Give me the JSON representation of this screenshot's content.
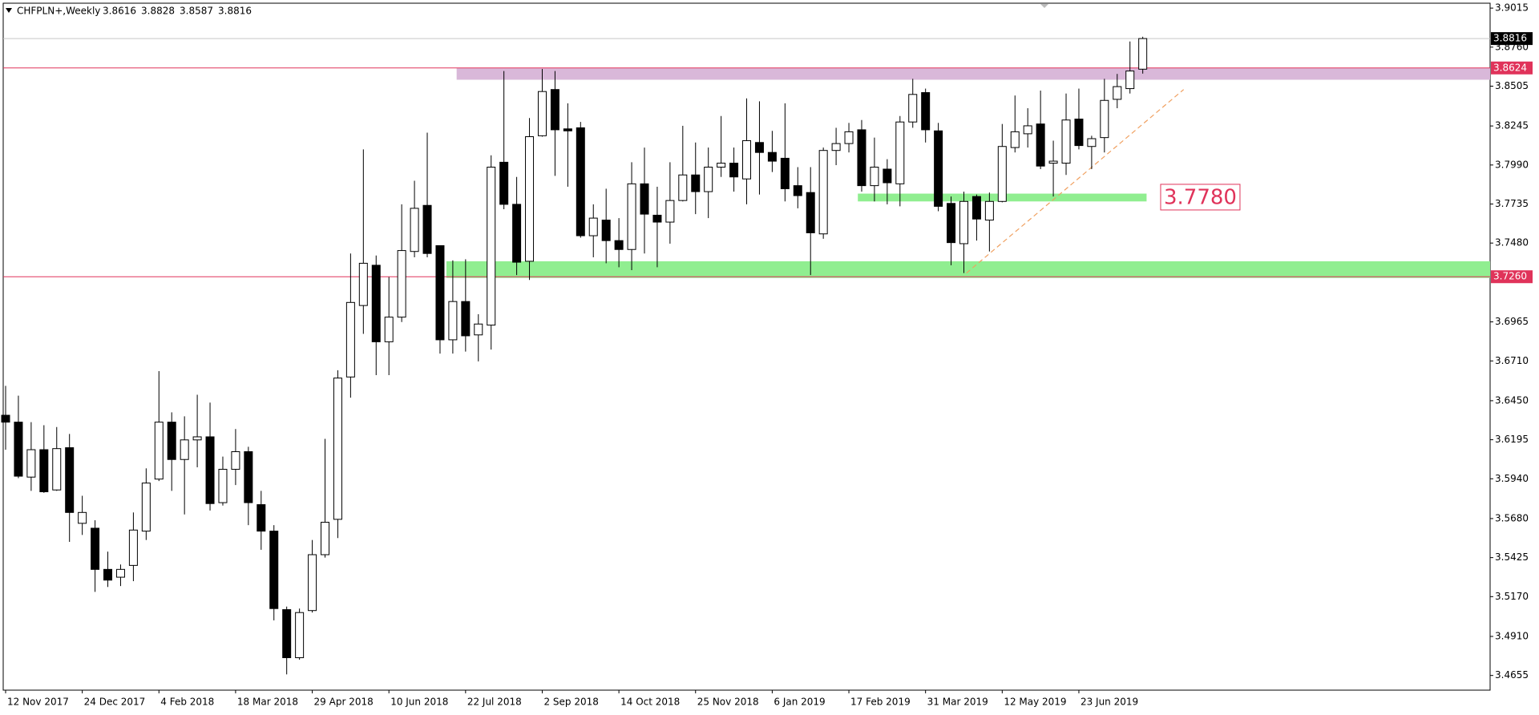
{
  "chart_data": {
    "type": "candlestick",
    "symbol": "CHFPLN+,Weekly",
    "categories": [
      "12 Nov 2017",
      null,
      null,
      null,
      null,
      null,
      "24 Dec 2017",
      null,
      null,
      null,
      null,
      null,
      "4 Feb 2018",
      null,
      null,
      null,
      null,
      null,
      "18 Mar 2018",
      null,
      null,
      null,
      null,
      null,
      "29 Apr 2018",
      null,
      null,
      null,
      null,
      null,
      "10 Jun 2018",
      null,
      null,
      null,
      null,
      null,
      "22 Jul 2018",
      null,
      null,
      null,
      null,
      null,
      "2 Sep 2018",
      null,
      null,
      null,
      null,
      null,
      "14 Oct 2018",
      null,
      null,
      null,
      null,
      null,
      "25 Nov 2018",
      null,
      null,
      null,
      null,
      null,
      "6 Jan 2019",
      null,
      null,
      null,
      null,
      null,
      "17 Feb 2019",
      null,
      null,
      null,
      null,
      null,
      "31 Mar 2019",
      null,
      null,
      null,
      null,
      null,
      "12 May 2019",
      null,
      null,
      null,
      null,
      null,
      "23 Jun 2019",
      null,
      null,
      null,
      null,
      null
    ],
    "open": [
      3.6355,
      3.631,
      3.5951,
      3.613,
      3.5867,
      3.6143,
      3.5649,
      3.5617,
      3.5348,
      3.5297,
      3.5374,
      3.5598,
      3.5938,
      3.631,
      3.6066,
      3.6194,
      3.6214,
      3.5784,
      3.6002,
      3.6117,
      3.5771,
      3.5598,
      3.5085,
      3.4771,
      3.5079,
      3.5444,
      3.5675,
      3.6605,
      3.7072,
      3.7335,
      3.6835,
      3.6996,
      3.7425,
      3.7726,
      3.7463,
      3.6848,
      3.7098,
      3.688,
      3.6944,
      3.8008,
      3.7733,
      3.7361,
      3.8181,
      3.8483,
      3.8226,
      3.8233,
      3.7528,
      3.763,
      3.7496,
      3.7438,
      3.7867,
      3.7662,
      3.7617,
      3.7758,
      3.7925,
      3.7816,
      3.7976,
      3.8002,
      3.7899,
      3.8137,
      3.8072,
      3.8034,
      3.7855,
      3.781,
      3.754,
      3.8085,
      3.813,
      3.822,
      3.7855,
      3.7963,
      3.7867,
      3.8271,
      3.8463,
      3.8213,
      3.7739,
      3.7476,
      3.7784,
      3.763,
      3.7752,
      3.8104,
      3.8194,
      3.8258,
      3.8002,
      3.8002,
      3.829,
      3.8111,
      3.8169,
      3.8419,
      3.8489,
      3.8616
    ],
    "high": [
      3.6547,
      3.6483,
      3.631,
      3.629,
      3.6278,
      3.6233,
      3.5829,
      3.5669,
      3.5464,
      3.538,
      3.572,
      3.6008,
      3.6643,
      3.6374,
      3.6348,
      3.6489,
      3.6438,
      3.6085,
      3.6265,
      3.6149,
      3.5861,
      3.5637,
      3.5105,
      3.5092,
      3.554,
      3.6201,
      3.6649,
      3.7412,
      3.8092,
      3.7399,
      3.7258,
      3.7733,
      3.7887,
      3.8201,
      3.7463,
      3.7367,
      3.7374,
      3.7015,
      3.8053,
      3.8604,
      3.7912,
      3.8297,
      3.8617,
      3.8604,
      3.8393,
      3.8271,
      3.7733,
      3.7835,
      3.7643,
      3.8008,
      3.8104,
      3.7848,
      3.8008,
      3.8246,
      3.8137,
      3.8104,
      3.831,
      3.8104,
      3.8425,
      3.8406,
      3.8213,
      3.8393,
      3.7976,
      3.7976,
      3.8104,
      3.8233,
      3.8265,
      3.8284,
      3.8169,
      3.8028,
      3.831,
      3.8553,
      3.8489,
      3.8265,
      3.7784,
      3.7816,
      3.7797,
      3.781,
      3.8258,
      3.8444,
      3.8361,
      3.8476,
      3.8149,
      3.8457,
      3.8489,
      3.8181,
      3.8553,
      3.8585,
      3.8797,
      3.8828
    ],
    "low": [
      3.613,
      3.5944,
      3.5861,
      3.5848,
      3.5861,
      3.5528,
      3.5573,
      3.5201,
      3.5233,
      3.5239,
      3.5271,
      3.554,
      3.5925,
      3.5861,
      3.5707,
      3.6015,
      3.5733,
      3.5765,
      3.5899,
      3.5637,
      3.5476,
      3.5015,
      3.4662,
      3.4758,
      3.5066,
      3.5425,
      3.5553,
      3.647,
      3.6887,
      3.6617,
      3.6617,
      3.6964,
      3.7387,
      3.7387,
      3.6758,
      3.6758,
      3.6771,
      3.6707,
      3.6784,
      3.7701,
      3.7271,
      3.7239,
      3.8175,
      3.7919,
      3.7848,
      3.7515,
      3.7387,
      3.7348,
      3.7322,
      3.7303,
      3.7412,
      3.7322,
      3.7476,
      3.7752,
      3.7669,
      3.7643,
      3.7912,
      3.7816,
      3.7733,
      3.7797,
      3.7944,
      3.7752,
      3.7707,
      3.7271,
      3.7508,
      3.7989,
      3.8072,
      3.7816,
      3.7752,
      3.7733,
      3.772,
      3.8233,
      3.8137,
      3.7688,
      3.7335,
      3.7284,
      3.7496,
      3.7425,
      3.7746,
      3.8072,
      3.8104,
      3.7963,
      3.7784,
      3.7925,
      3.8092,
      3.7963,
      3.8072,
      3.8361,
      3.8457,
      3.8587
    ],
    "close": [
      3.631,
      3.5957,
      3.613,
      3.5855,
      3.6137,
      3.572,
      3.572,
      3.5348,
      3.5278,
      3.5348,
      3.5605,
      3.5912,
      3.631,
      3.6066,
      3.6194,
      3.6214,
      3.5778,
      3.6002,
      3.6117,
      3.5784,
      3.5598,
      3.5092,
      3.4771,
      3.5066,
      3.5444,
      3.5656,
      3.6598,
      3.7092,
      3.7348,
      3.6835,
      3.6996,
      3.7431,
      3.7707,
      3.7412,
      3.6848,
      3.7098,
      3.6874,
      3.6951,
      3.7976,
      3.7733,
      3.7355,
      3.8175,
      3.847,
      3.822,
      3.8213,
      3.7528,
      3.7643,
      3.7496,
      3.7438,
      3.7867,
      3.7669,
      3.7617,
      3.7758,
      3.7925,
      3.7816,
      3.7976,
      3.8002,
      3.7912,
      3.8149,
      3.8072,
      3.8015,
      3.7835,
      3.779,
      3.7547,
      3.8085,
      3.813,
      3.8207,
      3.7855,
      3.7976,
      3.7874,
      3.8271,
      3.8451,
      3.822,
      3.772,
      3.7483,
      3.7752,
      3.7637,
      3.7752,
      3.8111,
      3.8207,
      3.8246,
      3.7983,
      3.8015,
      3.8284,
      3.8117,
      3.8162,
      3.8412,
      3.8502,
      3.8604,
      3.8816
    ],
    "up_color": "#ffffff",
    "down_color": "#000000",
    "ylim": [
      3.4559,
      3.9047
    ],
    "yticks": [
      3.9015,
      {
        "value": 3.876,
        "label": "3.8760"
      },
      3.8505,
      3.8245,
      {
        "value": 3.799,
        "label": "3.7990"
      },
      3.7735,
      {
        "value": 3.748,
        "label": "3.7480"
      },
      3.6965,
      {
        "value": 3.671,
        "label": "3.6710"
      },
      {
        "value": 3.645,
        "label": "3.6450"
      },
      3.6195,
      {
        "value": 3.594,
        "label": "3.5940"
      },
      {
        "value": 3.568,
        "label": "3.5680"
      },
      3.5425,
      {
        "value": 3.517,
        "label": "3.5170"
      },
      {
        "value": 3.491,
        "label": "3.4910"
      },
      3.4655
    ],
    "zones": [
      {
        "from": 35.8,
        "low": 3.8547,
        "high": 3.8624,
        "color": "#d9b8d9"
      },
      {
        "from": 35,
        "low": 3.7252,
        "high": 3.7361,
        "color": "#90ee90"
      },
      {
        "from": 67.2,
        "to": 89.3,
        "low": 3.7752,
        "high": 3.7803,
        "color": "#90ee90"
      }
    ],
    "price_markers": [
      {
        "value": 3.8816,
        "color": "#000000",
        "line_color": "#c8c8c8"
      },
      {
        "value": 3.8624,
        "color": "#e0335a",
        "line_color": "#e0335a"
      },
      {
        "value": 3.726,
        "label": "3.7260",
        "color": "#e0335a",
        "line_color": "#e0335a"
      }
    ],
    "trendline": {
      "from": [
        75.2,
        3.7284
      ],
      "to": [
        92.2,
        3.8483
      ],
      "color": "#f0a060"
    },
    "annotation": {
      "text": "3.7780",
      "value": 3.778,
      "at": 90.4,
      "color": "#e0335a"
    }
  }
}
